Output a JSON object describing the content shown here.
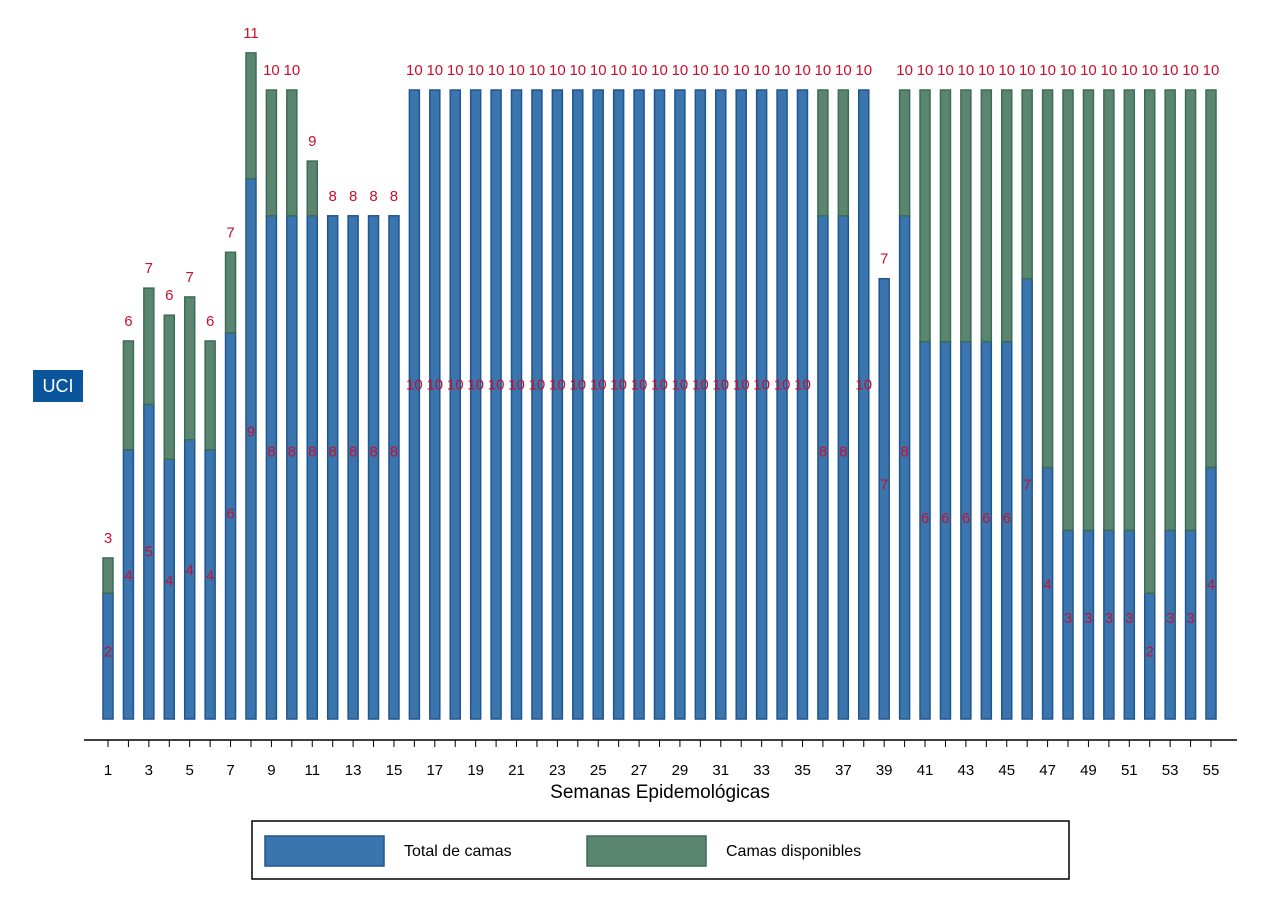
{
  "chart_data": {
    "type": "stacked-bar",
    "panel_label": "UCI",
    "x_label": "Semanas Epidemológicas",
    "categories": [
      1,
      null,
      3,
      null,
      5,
      null,
      7,
      null,
      9,
      null,
      11,
      null,
      13,
      null,
      15,
      null,
      17,
      null,
      19,
      null,
      21,
      null,
      23,
      null,
      25,
      null,
      27,
      null,
      29,
      null,
      31,
      null,
      33,
      null,
      35,
      null,
      37,
      null,
      39,
      null,
      41,
      null,
      43,
      null,
      45,
      null,
      47,
      null,
      49,
      null,
      51,
      null,
      53,
      null,
      55
    ],
    "ylim": [
      0,
      11
    ],
    "series": [
      {
        "name": "Total de camas",
        "color": "#3a75ad",
        "values": [
          2,
          4.28,
          5,
          4.13,
          4.44,
          4.28,
          6.14,
          8.59,
          8,
          8,
          8,
          8,
          8,
          8,
          8,
          10,
          10,
          10,
          10,
          10,
          10,
          10,
          10,
          10,
          10,
          10,
          10,
          10,
          10,
          10,
          10,
          10,
          10,
          10,
          10,
          8,
          8,
          10,
          7,
          8,
          6,
          6,
          6,
          6,
          6,
          7,
          4,
          3,
          3,
          3,
          3,
          2,
          3,
          3,
          4
        ],
        "value_labels": [
          "2",
          "4",
          "5",
          "4",
          "4",
          "4",
          "6",
          "9",
          "8",
          "8",
          "8",
          "8",
          "8",
          "8",
          "8",
          "10",
          "10",
          "10",
          "10",
          "10",
          "10",
          "10",
          "10",
          "10",
          "10",
          "10",
          "10",
          "10",
          "10",
          "10",
          "10",
          "10",
          "10",
          "10",
          "10",
          "8",
          "8",
          "10",
          "7",
          "8",
          "6",
          "6",
          "6",
          "6",
          "6",
          "7",
          "4",
          "3",
          "3",
          "3",
          "3",
          "2",
          "3",
          "3",
          "4"
        ]
      },
      {
        "name": "Camas disponibles",
        "color": "#5a8670",
        "values": [
          0.56,
          1.73,
          1.85,
          2.29,
          2.27,
          1.73,
          1.28,
          2,
          2,
          2,
          0.87,
          0,
          0,
          0,
          0,
          0,
          0,
          0,
          0,
          0,
          0,
          0,
          0,
          0,
          0,
          0,
          0,
          0,
          0,
          0,
          0,
          0,
          0,
          0,
          0,
          2,
          2,
          0,
          0,
          2,
          4,
          4,
          4,
          4,
          4,
          3,
          6,
          7,
          7,
          7,
          7,
          8,
          7,
          7,
          6
        ]
      }
    ],
    "total_labels": [
      "3",
      "6",
      "7",
      "6",
      "7",
      "6",
      "7",
      "11",
      "10",
      "10",
      "9",
      "8",
      "8",
      "8",
      "8",
      "10",
      "10",
      "10",
      "10",
      "10",
      "10",
      "10",
      "10",
      "10",
      "10",
      "10",
      "10",
      "10",
      "10",
      "10",
      "10",
      "10",
      "10",
      "10",
      "10",
      "10",
      "10",
      "10",
      "7",
      "10",
      "10",
      "10",
      "10",
      "10",
      "10",
      "10",
      "10",
      "10",
      "10",
      "10",
      "10",
      "10",
      "10",
      "10",
      "10"
    ]
  }
}
